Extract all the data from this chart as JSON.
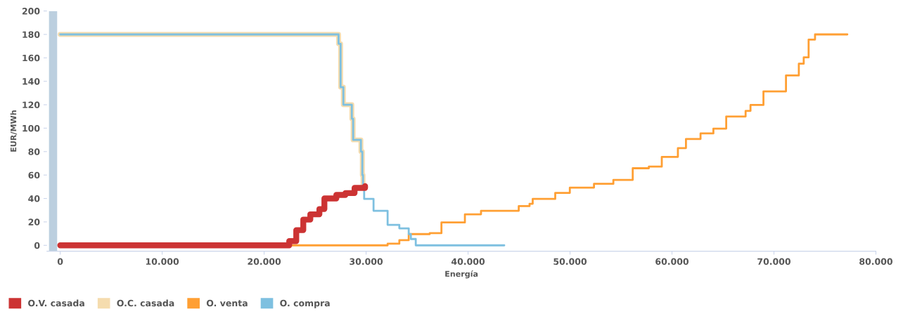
{
  "chart_data": {
    "type": "step",
    "xlabel": "Energía",
    "ylabel": "EUR/MWh",
    "xlim": [
      -1300,
      80000
    ],
    "ylim": [
      -5,
      200
    ],
    "xticks": [
      {
        "value": 0,
        "label": "0"
      },
      {
        "value": 10000,
        "label": "10.000"
      },
      {
        "value": 20000,
        "label": "20.000"
      },
      {
        "value": 30000,
        "label": "30.000"
      },
      {
        "value": 40000,
        "label": "40.000"
      },
      {
        "value": 50000,
        "label": "50.000"
      },
      {
        "value": 60000,
        "label": "60.000"
      },
      {
        "value": 70000,
        "label": "70.000"
      },
      {
        "value": 80000,
        "label": "80.000"
      }
    ],
    "yticks": [
      0,
      20,
      40,
      60,
      80,
      100,
      120,
      140,
      160,
      180,
      200
    ],
    "grid": false,
    "legend": "bottom left",
    "marker": "none",
    "line_style": "solid",
    "bands": [
      {
        "axis": "x",
        "from": -1100,
        "to": -300,
        "color": "#bccfdf"
      }
    ],
    "series": [
      {
        "name": "O.V. casada",
        "color": "#cc3333",
        "x": [
          0,
          22100,
          22460,
          23150,
          23840,
          24530,
          25420,
          25910,
          27080,
          27970,
          28870,
          29900
        ],
        "values": [
          0,
          0,
          3.6,
          13,
          22,
          26.5,
          31,
          40,
          43,
          44.6,
          49,
          50.6
        ]
      },
      {
        "name": "O.C. casada",
        "color": "#f5dcae",
        "x": [
          0,
          27150,
          27300,
          27500,
          27770,
          28600,
          28730,
          29490,
          29630,
          29700,
          29840
        ],
        "values": [
          180,
          180,
          172,
          135,
          120,
          108,
          90,
          80,
          60,
          50,
          50
        ]
      },
      {
        "name": "O. venta",
        "color": "#ff9f33",
        "x": [
          0,
          31630,
          32110,
          33260,
          34180,
          36240,
          37390,
          39690,
          41270,
          44970,
          46030,
          46340,
          48550,
          49980,
          52350,
          54250,
          56150,
          57730,
          59000,
          60580,
          61370,
          62800,
          64060,
          65320,
          67220,
          67700,
          68970,
          71180,
          72440,
          72920,
          73400,
          74030,
          77200
        ],
        "values": [
          0,
          0,
          1.4,
          4.4,
          9.6,
          10.4,
          19.5,
          26.5,
          29.5,
          33.5,
          35.5,
          39.6,
          44.8,
          49.3,
          52.5,
          55.9,
          65.8,
          67.2,
          75.5,
          83,
          90.8,
          95.5,
          99.6,
          110,
          114.8,
          119.8,
          131.4,
          145,
          155,
          160.4,
          175.6,
          180,
          180
        ]
      },
      {
        "name": "O. compra",
        "color": "#7ec0e0",
        "x": [
          0,
          27150,
          27300,
          27500,
          27770,
          28600,
          28730,
          29490,
          29630,
          29700,
          29810,
          30730,
          32110,
          33260,
          34180,
          34390,
          34870,
          43550
        ],
        "values": [
          180,
          180,
          172,
          135,
          120,
          108,
          90,
          80,
          60,
          50,
          39.6,
          29.5,
          17.5,
          14.5,
          9.6,
          5.4,
          0,
          0
        ]
      }
    ]
  }
}
